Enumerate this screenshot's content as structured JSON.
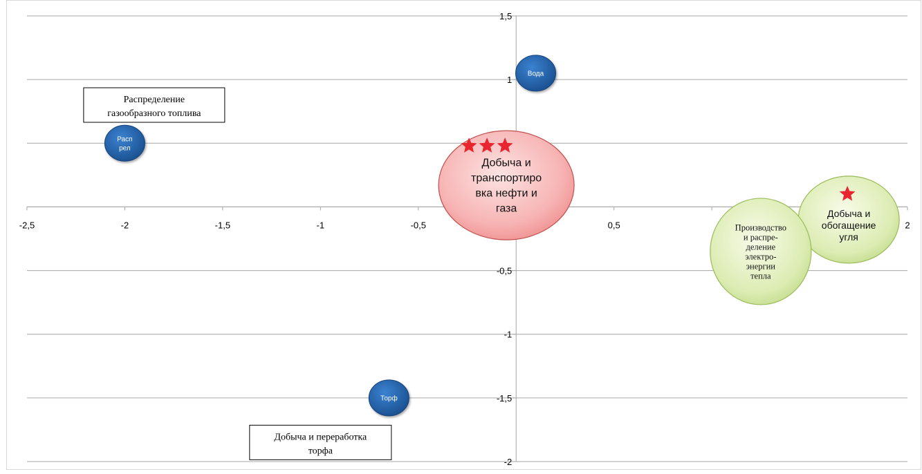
{
  "chart_data": {
    "type": "scatter",
    "subtype": "bubble",
    "xlim": [
      -2.5,
      2
    ],
    "ylim": [
      -2,
      1.5
    ],
    "x_ticks": [
      "-2,5",
      "-2",
      "-1,5",
      "-1",
      "-0,5",
      "0,5",
      "2"
    ],
    "x_tick_values": [
      -2.5,
      -2,
      -1.5,
      -1,
      -0.5,
      0.5,
      2
    ],
    "y_ticks": [
      "1,5",
      "1",
      "-0,5",
      "-1",
      "-1,5",
      "-2"
    ],
    "y_tick_values": [
      1.5,
      1,
      -0.5,
      -1,
      -1.5,
      -2
    ],
    "gridlines_y": [
      1.5,
      1,
      0.5,
      0,
      -0.5,
      -1,
      -1.5,
      -2
    ],
    "grid": true,
    "axis_color": "#a6a6a6",
    "bubbles": [
      {
        "label": "Вода",
        "x": 0.1,
        "y": 1.05,
        "size": 0.35,
        "color": "#1f5fa8",
        "style": "small",
        "stars": 0
      },
      {
        "label": "Расп рел",
        "lines": [
          "Расп",
          "рел"
        ],
        "x": -2.0,
        "y": 0.5,
        "size": 0.35,
        "color": "#1f5fa8",
        "style": "small",
        "stars": 0
      },
      {
        "label": "Торф",
        "x": -0.65,
        "y": -1.5,
        "size": 0.35,
        "color": "#1f5fa8",
        "style": "small",
        "stars": 0
      },
      {
        "label": "Добыча и транспортировка нефти и газа",
        "lines": [
          "Добыча и",
          "транспортиро",
          "вка нефти и",
          "газа"
        ],
        "x": -0.05,
        "y": 0.17,
        "size": 1.0,
        "color": "#f4a4a4",
        "style": "big-red",
        "stars": 3
      },
      {
        "label": "Добыча и обогащение угля",
        "lines": [
          "Добыча и",
          "обогащение",
          "угля"
        ],
        "x": 1.7,
        "y": -0.1,
        "size": 0.72,
        "color": "#cfe6a0",
        "style": "green",
        "stars": 1
      },
      {
        "label": "Производство и распределение электро-энергии тепла",
        "lines": [
          "Производство",
          "и распре-",
          "деление",
          "электро-",
          "энергии",
          "тепла"
        ],
        "x": 1.25,
        "y": -0.35,
        "size": 0.8,
        "color": "#dcecb4",
        "style": "green-serif",
        "stars": 0
      }
    ],
    "annotations": [
      {
        "lines": [
          "Распределение",
          "газообразного топлива"
        ],
        "x": -1.85,
        "y": 0.8
      },
      {
        "lines": [
          "Добыча и переработка",
          "торфа"
        ],
        "x": -1.0,
        "y": -1.85
      }
    ]
  }
}
